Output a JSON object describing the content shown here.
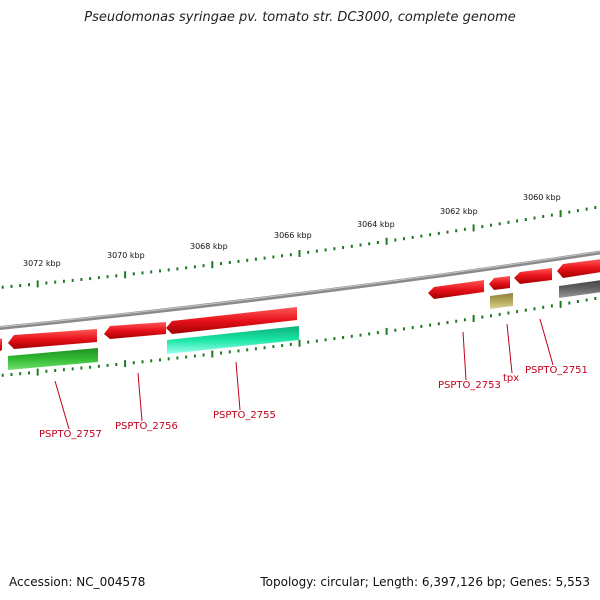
{
  "title": "Pseudomonas syringae pv. tomato str. DC3000, complete genome",
  "footer": {
    "accession": "Accession: NC_004578",
    "info": "Topology: circular; Length: 6,397,126 bp; Genes: 5,553"
  },
  "colors": {
    "backbone": "#8a8a8a",
    "tick": "#1f7a1f",
    "gene_red": "#e8121a",
    "gene_green": "#33bb33",
    "gene_cyan": "#19e6a6",
    "gene_olive": "#b5a85a",
    "gene_gray": "#666666",
    "label": "#c0001a"
  },
  "kbp_labels": [
    "3072 kbp",
    "3070 kbp",
    "3068 kbp",
    "3066 kbp",
    "3064 kbp",
    "3062 kbp",
    "3060 kbp"
  ],
  "gene_labels": [
    "PSPTO_2757",
    "PSPTO_2756",
    "PSPTO_2755",
    "PSPTO_2753",
    "tpx",
    "PSPTO_2751"
  ]
}
